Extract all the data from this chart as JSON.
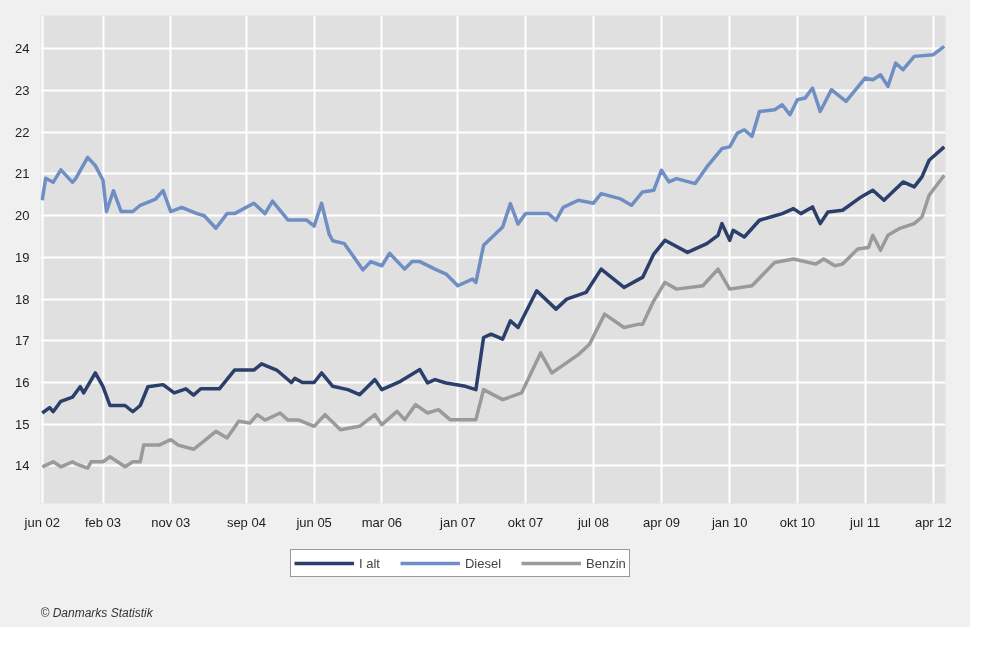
{
  "chart_data": {
    "type": "line",
    "xlim": [
      "2002-05-25",
      "2012-05-20"
    ],
    "ylim": [
      13.1,
      24.8
    ],
    "xticks": [
      {
        "value": "2002-06-01",
        "label": "jun 02"
      },
      {
        "value": "2003-02-01",
        "label": "feb 03"
      },
      {
        "value": "2003-11-01",
        "label": "nov 03"
      },
      {
        "value": "2004-09-01",
        "label": "sep 04"
      },
      {
        "value": "2005-06-01",
        "label": "jun 05"
      },
      {
        "value": "2006-03-01",
        "label": "mar 06"
      },
      {
        "value": "2007-01-01",
        "label": "jan 07"
      },
      {
        "value": "2007-10-01",
        "label": "okt 07"
      },
      {
        "value": "2008-07-01",
        "label": "jul 08"
      },
      {
        "value": "2009-04-01",
        "label": "apr 09"
      },
      {
        "value": "2010-01-01",
        "label": "jan 10"
      },
      {
        "value": "2010-10-01",
        "label": "okt 10"
      },
      {
        "value": "2011-07-01",
        "label": "jul 11"
      },
      {
        "value": "2012-04-01",
        "label": "apr 12"
      }
    ],
    "yticks": [
      14,
      15,
      16,
      17,
      18,
      19,
      20,
      21,
      22,
      23,
      24
    ],
    "grid": true,
    "legend": "bottom",
    "annotations": [
      "© Danmarks Statistik"
    ],
    "series": [
      {
        "name": "I alt",
        "color": "#2b3f6b",
        "x": [
          "2002-06-01",
          "2002-07-01",
          "2002-07-15",
          "2002-08-15",
          "2002-10-01",
          "2002-11-01",
          "2002-11-15",
          "2003-01-01",
          "2003-02-01",
          "2003-03-01",
          "2003-05-01",
          "2003-06-01",
          "2003-07-01",
          "2003-08-01",
          "2003-10-01",
          "2003-11-15",
          "2004-01-01",
          "2004-02-01",
          "2004-03-01",
          "2004-05-15",
          "2004-07-15",
          "2004-10-01",
          "2004-11-01",
          "2005-01-01",
          "2005-03-01",
          "2005-03-15",
          "2005-04-15",
          "2005-06-01",
          "2005-07-01",
          "2005-08-15",
          "2005-10-15",
          "2005-12-01",
          "2006-02-01",
          "2006-03-01",
          "2006-05-15",
          "2006-08-01",
          "2006-09-01",
          "2006-10-01",
          "2006-11-15",
          "2007-02-01",
          "2007-03-15",
          "2007-04-15",
          "2007-05-15",
          "2007-07-01",
          "2007-08-01",
          "2007-09-01",
          "2007-11-15",
          "2008-02-01",
          "2008-03-15",
          "2008-06-01",
          "2008-08-01",
          "2008-11-01",
          "2009-01-01",
          "2009-01-15",
          "2009-03-01",
          "2009-04-15",
          "2009-07-15",
          "2009-10-01",
          "2009-11-15",
          "2009-12-01",
          "2010-01-01",
          "2010-01-15",
          "2010-03-01",
          "2010-05-01",
          "2010-06-15",
          "2010-08-01",
          "2010-09-15",
          "2010-10-15",
          "2010-12-01",
          "2011-01-01",
          "2011-02-01",
          "2011-04-01",
          "2011-06-15",
          "2011-08-01",
          "2011-09-15",
          "2011-12-01",
          "2012-01-15",
          "2012-02-15",
          "2012-03-15",
          "2012-05-15"
        ],
        "values": [
          15.27,
          15.4,
          15.3,
          15.55,
          15.65,
          15.9,
          15.75,
          16.23,
          15.9,
          15.45,
          15.45,
          15.3,
          15.45,
          15.9,
          15.95,
          15.75,
          15.85,
          15.7,
          15.85,
          15.85,
          16.3,
          16.3,
          16.45,
          16.3,
          16.0,
          16.1,
          16.0,
          16.0,
          16.23,
          15.91,
          15.83,
          15.71,
          16.07,
          15.83,
          16.03,
          16.31,
          15.99,
          16.07,
          15.99,
          15.91,
          15.83,
          17.08,
          17.16,
          17.04,
          17.48,
          17.32,
          18.2,
          17.76,
          18.0,
          18.16,
          18.72,
          18.28,
          18.48,
          18.52,
          19.08,
          19.41,
          19.12,
          19.33,
          19.53,
          19.81,
          19.41,
          19.65,
          19.49,
          19.89,
          19.97,
          20.05,
          20.17,
          20.05,
          20.21,
          19.81,
          20.09,
          20.13,
          20.45,
          20.61,
          20.37,
          20.81,
          20.69,
          20.93,
          21.33,
          21.65
        ]
      },
      {
        "name": "Diesel",
        "color": "#6f8fc4",
        "x": [
          "2002-06-01",
          "2002-06-15",
          "2002-07-15",
          "2002-08-15",
          "2002-10-01",
          "2002-10-15",
          "2002-12-01",
          "2003-01-01",
          "2003-02-01",
          "2003-02-15",
          "2003-03-15",
          "2003-04-15",
          "2003-06-01",
          "2003-07-01",
          "2003-09-01",
          "2003-10-01",
          "2003-11-01",
          "2003-12-15",
          "2004-02-15",
          "2004-03-15",
          "2004-05-01",
          "2004-06-15",
          "2004-07-15",
          "2004-10-01",
          "2004-11-15",
          "2004-12-15",
          "2005-02-15",
          "2005-05-01",
          "2005-06-01",
          "2005-07-01",
          "2005-08-01",
          "2005-08-15",
          "2005-10-01",
          "2005-12-15",
          "2006-01-15",
          "2006-03-01",
          "2006-04-01",
          "2006-06-01",
          "2006-07-01",
          "2006-08-01",
          "2006-10-01",
          "2006-11-15",
          "2007-01-01",
          "2007-03-01",
          "2007-03-15",
          "2007-04-15",
          "2007-07-01",
          "2007-08-01",
          "2007-09-01",
          "2007-10-01",
          "2008-01-01",
          "2008-02-01",
          "2008-03-01",
          "2008-05-01",
          "2008-07-01",
          "2008-08-01",
          "2008-10-15",
          "2008-12-01",
          "2009-01-15",
          "2009-03-01",
          "2009-04-01",
          "2009-05-01",
          "2009-06-01",
          "2009-08-15",
          "2009-10-01",
          "2009-12-01",
          "2010-01-01",
          "2010-02-01",
          "2010-03-01",
          "2010-04-01",
          "2010-05-01",
          "2010-07-01",
          "2010-08-01",
          "2010-09-01",
          "2010-10-01",
          "2010-11-01",
          "2010-12-01",
          "2011-01-01",
          "2011-02-15",
          "2011-04-15",
          "2011-07-01",
          "2011-08-01",
          "2011-09-01",
          "2011-10-01",
          "2011-11-01",
          "2011-12-01",
          "2012-01-15",
          "2012-04-01",
          "2012-05-15"
        ],
        "values": [
          20.37,
          20.9,
          20.8,
          21.1,
          20.8,
          20.9,
          21.4,
          21.2,
          20.85,
          20.1,
          20.6,
          20.1,
          20.1,
          20.25,
          20.4,
          20.6,
          20.1,
          20.2,
          20.05,
          20.0,
          19.7,
          20.05,
          20.05,
          20.3,
          20.05,
          20.35,
          19.9,
          19.9,
          19.75,
          20.3,
          19.55,
          19.4,
          19.33,
          18.7,
          18.9,
          18.8,
          19.1,
          18.72,
          18.9,
          18.9,
          18.72,
          18.6,
          18.32,
          18.48,
          18.4,
          19.29,
          19.73,
          20.29,
          19.8,
          20.05,
          20.05,
          19.89,
          20.2,
          20.37,
          20.3,
          20.53,
          20.41,
          20.25,
          20.57,
          20.61,
          21.09,
          20.81,
          20.89,
          20.77,
          21.17,
          21.61,
          21.65,
          21.98,
          22.06,
          21.9,
          22.5,
          22.54,
          22.66,
          22.42,
          22.78,
          22.82,
          23.06,
          22.5,
          23.02,
          22.74,
          23.3,
          23.26,
          23.38,
          23.1,
          23.66,
          23.5,
          23.82,
          23.86,
          24.06
        ]
      },
      {
        "name": "Benzin",
        "color": "#9a9a9a",
        "x": [
          "2002-06-01",
          "2002-07-15",
          "2002-08-15",
          "2002-10-01",
          "2002-10-15",
          "2002-12-01",
          "2002-12-15",
          "2003-02-01",
          "2003-03-01",
          "2003-05-01",
          "2003-06-01",
          "2003-07-01",
          "2003-07-15",
          "2003-09-15",
          "2003-11-01",
          "2003-12-01",
          "2004-02-01",
          "2004-03-15",
          "2004-05-01",
          "2004-06-15",
          "2004-08-01",
          "2004-09-15",
          "2004-10-15",
          "2004-11-15",
          "2005-01-15",
          "2005-02-15",
          "2005-04-01",
          "2005-06-01",
          "2005-07-15",
          "2005-09-15",
          "2005-12-01",
          "2006-02-01",
          "2006-03-01",
          "2006-05-01",
          "2006-06-01",
          "2006-07-15",
          "2006-09-01",
          "2006-10-15",
          "2006-12-01",
          "2007-03-15",
          "2007-04-15",
          "2007-07-01",
          "2007-09-15",
          "2007-12-01",
          "2008-01-15",
          "2008-05-01",
          "2008-06-15",
          "2008-08-15",
          "2008-11-01",
          "2009-01-01",
          "2009-01-15",
          "2009-03-01",
          "2009-04-15",
          "2009-06-01",
          "2009-09-15",
          "2009-11-15",
          "2010-01-01",
          "2010-04-01",
          "2010-07-01",
          "2010-09-15",
          "2010-12-15",
          "2011-01-15",
          "2011-03-01",
          "2011-04-01",
          "2011-06-01",
          "2011-07-15",
          "2011-08-01",
          "2011-09-01",
          "2011-10-01",
          "2011-11-15",
          "2012-01-15",
          "2012-02-15",
          "2012-03-15",
          "2012-05-15"
        ],
        "values": [
          13.98,
          14.1,
          13.98,
          14.1,
          14.05,
          13.95,
          14.1,
          14.1,
          14.22,
          13.98,
          14.1,
          14.1,
          14.5,
          14.5,
          14.63,
          14.5,
          14.4,
          14.6,
          14.83,
          14.67,
          15.07,
          15.03,
          15.23,
          15.1,
          15.27,
          15.1,
          15.1,
          14.95,
          15.23,
          14.87,
          14.95,
          15.23,
          14.99,
          15.31,
          15.11,
          15.47,
          15.27,
          15.35,
          15.11,
          15.11,
          15.83,
          15.59,
          15.75,
          16.71,
          16.23,
          16.67,
          16.92,
          17.64,
          17.32,
          17.4,
          17.4,
          17.96,
          18.4,
          18.24,
          18.32,
          18.72,
          18.24,
          18.32,
          18.88,
          18.96,
          18.84,
          18.96,
          18.8,
          18.84,
          19.2,
          19.24,
          19.53,
          19.17,
          19.53,
          19.69,
          19.81,
          19.97,
          20.49,
          20.97
        ]
      }
    ]
  }
}
